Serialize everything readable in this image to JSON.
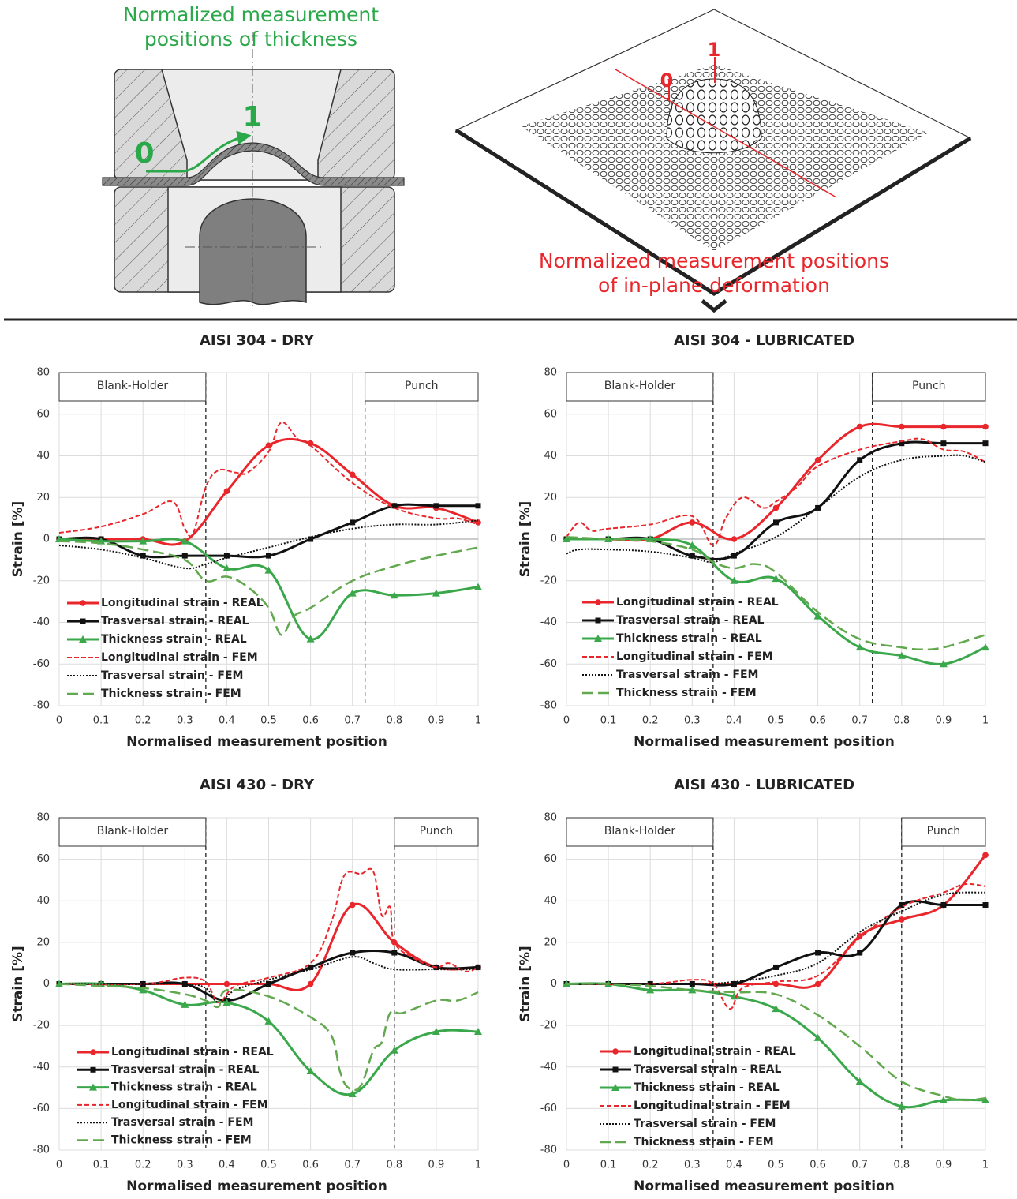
{
  "diagram": {
    "left": {
      "title_lines": [
        "Normalized measurement",
        "positions of thickness"
      ],
      "start_label": "0",
      "end_label": "1"
    },
    "right": {
      "title_lines": [
        "Normalized measurement positions",
        "of in-plane deformation"
      ],
      "start_label": "0",
      "end_label": "1"
    }
  },
  "chart_data": [
    {
      "type": "line",
      "title": "AISI 304 - DRY",
      "xlabel": "Normalised measurement position",
      "ylabel": "Strain [%]",
      "xlim": [
        0,
        1
      ],
      "xticks": [
        0,
        0.1,
        0.2,
        0.3,
        0.4,
        0.5,
        0.6,
        0.7,
        0.8,
        0.9,
        1
      ],
      "ylim": [
        -80,
        80
      ],
      "yticks": [
        -80,
        -60,
        -40,
        -20,
        0,
        20,
        40,
        60,
        80
      ],
      "grid": true,
      "legend": "lower left",
      "regions": [
        {
          "label": "Blank-Holder",
          "x": 0.35,
          "side": "left"
        },
        {
          "label": "Punch",
          "x": 0.73,
          "side": "right"
        }
      ],
      "series": [
        {
          "name": "Longitudinal strain - REAL",
          "color": "#e8262b",
          "style": "solid",
          "marker": "circle",
          "x": [
            0,
            0.1,
            0.2,
            0.3,
            0.4,
            0.5,
            0.6,
            0.7,
            0.8,
            0.9,
            1
          ],
          "values": [
            0,
            0,
            0,
            -1,
            23,
            45,
            46,
            31,
            16,
            15,
            8
          ]
        },
        {
          "name": "Trasversal strain - REAL",
          "color": "#111111",
          "style": "solid",
          "marker": "square",
          "x": [
            0,
            0.1,
            0.2,
            0.3,
            0.4,
            0.5,
            0.6,
            0.7,
            0.8,
            0.9,
            1
          ],
          "values": [
            0,
            0,
            -8,
            -8,
            -8,
            -8,
            0,
            8,
            16,
            16,
            16
          ]
        },
        {
          "name": "Thickness strain - REAL",
          "color": "#3aa84a",
          "style": "solid",
          "marker": "triangle",
          "x": [
            0,
            0.1,
            0.2,
            0.3,
            0.4,
            0.5,
            0.6,
            0.7,
            0.8,
            0.9,
            1
          ],
          "values": [
            0,
            -1,
            -1,
            -1,
            -14,
            -15,
            -48,
            -26,
            -27,
            -26,
            -23
          ]
        },
        {
          "name": "Longitudinal strain - FEM",
          "color": "#e8262b",
          "style": "dashed",
          "x": [
            0,
            0.1,
            0.2,
            0.27,
            0.3,
            0.32,
            0.35,
            0.38,
            0.42,
            0.45,
            0.5,
            0.53,
            0.57,
            0.6,
            0.7,
            0.8,
            0.9,
            0.95,
            1
          ],
          "values": [
            3,
            6,
            12,
            18,
            5,
            3,
            25,
            33,
            32,
            32,
            42,
            56,
            48,
            45,
            27,
            15,
            10,
            10,
            7
          ]
        },
        {
          "name": "Trasversal strain - FEM",
          "color": "#111111",
          "style": "dotted",
          "x": [
            0,
            0.1,
            0.2,
            0.3,
            0.35,
            0.4,
            0.5,
            0.6,
            0.7,
            0.8,
            0.9,
            1
          ],
          "values": [
            -3,
            -5,
            -9,
            -14,
            -12,
            -9,
            -4,
            1,
            5,
            7,
            7,
            9
          ]
        },
        {
          "name": "Thickness strain - FEM",
          "color": "#62a84e",
          "style": "long-dashed",
          "x": [
            0,
            0.1,
            0.2,
            0.3,
            0.35,
            0.4,
            0.45,
            0.5,
            0.53,
            0.56,
            0.6,
            0.7,
            0.8,
            0.9,
            1
          ],
          "values": [
            -1,
            -2,
            -5,
            -10,
            -20,
            -18,
            -23,
            -33,
            -46,
            -37,
            -33,
            -20,
            -13,
            -8,
            -4
          ]
        }
      ]
    },
    {
      "type": "line",
      "title": "AISI 304 - LUBRICATED",
      "xlabel": "Normalised measurement position",
      "ylabel": "Strain [%]",
      "xlim": [
        0,
        1
      ],
      "xticks": [
        0,
        0.1,
        0.2,
        0.3,
        0.4,
        0.5,
        0.6,
        0.7,
        0.8,
        0.9,
        1
      ],
      "ylim": [
        -80,
        80
      ],
      "yticks": [
        -80,
        -60,
        -40,
        -20,
        0,
        20,
        40,
        60,
        80
      ],
      "grid": true,
      "legend": "lower left",
      "regions": [
        {
          "label": "Blank-Holder",
          "x": 0.35,
          "side": "left"
        },
        {
          "label": "Punch",
          "x": 0.73,
          "side": "right"
        }
      ],
      "series": [
        {
          "name": "Longitudinal strain - REAL",
          "color": "#e8262b",
          "style": "solid",
          "marker": "circle",
          "x": [
            0,
            0.1,
            0.2,
            0.3,
            0.4,
            0.5,
            0.6,
            0.7,
            0.8,
            0.9,
            1
          ],
          "values": [
            0,
            0,
            0,
            8,
            0,
            15,
            38,
            54,
            54,
            54,
            54
          ]
        },
        {
          "name": "Trasversal strain - REAL",
          "color": "#111111",
          "style": "solid",
          "marker": "square",
          "x": [
            0,
            0.1,
            0.2,
            0.3,
            0.4,
            0.5,
            0.6,
            0.7,
            0.8,
            0.9,
            1
          ],
          "values": [
            0,
            0,
            0,
            -8,
            -8,
            8,
            15,
            38,
            46,
            46,
            46
          ]
        },
        {
          "name": "Thickness strain - REAL",
          "color": "#3aa84a",
          "style": "solid",
          "marker": "triangle",
          "x": [
            0,
            0.1,
            0.2,
            0.3,
            0.4,
            0.5,
            0.6,
            0.7,
            0.8,
            0.9,
            1
          ],
          "values": [
            0,
            0,
            0,
            -3,
            -20,
            -19,
            -37,
            -52,
            -56,
            -60,
            -52
          ]
        },
        {
          "name": "Longitudinal strain - FEM",
          "color": "#e8262b",
          "style": "dashed",
          "x": [
            0,
            0.03,
            0.06,
            0.1,
            0.2,
            0.3,
            0.35,
            0.38,
            0.42,
            0.47,
            0.5,
            0.55,
            0.6,
            0.7,
            0.8,
            0.85,
            0.9,
            0.95,
            1
          ],
          "values": [
            1,
            8,
            4,
            5,
            7,
            11,
            -3,
            10,
            20,
            15,
            18,
            25,
            35,
            43,
            47,
            48,
            43,
            42,
            37
          ]
        },
        {
          "name": "Trasversal strain - FEM",
          "color": "#111111",
          "style": "dotted",
          "x": [
            0,
            0.03,
            0.1,
            0.2,
            0.3,
            0.35,
            0.4,
            0.5,
            0.6,
            0.7,
            0.8,
            0.9,
            0.95,
            1
          ],
          "values": [
            -7,
            -5,
            -5,
            -6,
            -9,
            -11,
            -7,
            1,
            15,
            30,
            38,
            40,
            40,
            37
          ]
        },
        {
          "name": "Thickness strain - FEM",
          "color": "#62a84e",
          "style": "long-dashed",
          "x": [
            0,
            0.1,
            0.2,
            0.3,
            0.35,
            0.4,
            0.45,
            0.5,
            0.6,
            0.7,
            0.8,
            0.85,
            0.9,
            1
          ],
          "values": [
            1,
            0,
            -1,
            -5,
            -11,
            -14,
            -12,
            -16,
            -35,
            -48,
            -52,
            -53,
            -52,
            -46
          ]
        }
      ]
    },
    {
      "type": "line",
      "title": "AISI 430 - DRY",
      "xlabel": "Normalised measurement position",
      "ylabel": "Strain [%]",
      "xlim": [
        0,
        1
      ],
      "xticks": [
        0,
        0.1,
        0.2,
        0.3,
        0.4,
        0.5,
        0.6,
        0.7,
        0.8,
        0.9,
        1
      ],
      "ylim": [
        -80,
        80
      ],
      "yticks": [
        -80,
        -60,
        -40,
        -20,
        0,
        20,
        40,
        60,
        80
      ],
      "grid": true,
      "legend": "lower left",
      "regions": [
        {
          "label": "Blank-Holder",
          "x": 0.35,
          "side": "left"
        },
        {
          "label": "Punch",
          "x": 0.8,
          "side": "right"
        }
      ],
      "series": [
        {
          "name": "Longitudinal strain - REAL",
          "color": "#e8262b",
          "style": "solid",
          "marker": "circle",
          "x": [
            0,
            0.1,
            0.2,
            0.3,
            0.4,
            0.5,
            0.6,
            0.7,
            0.8,
            0.9,
            1
          ],
          "values": [
            0,
            0,
            0,
            0,
            0,
            0,
            0,
            38,
            20,
            8,
            8
          ]
        },
        {
          "name": "Trasversal strain - REAL",
          "color": "#111111",
          "style": "solid",
          "marker": "square",
          "x": [
            0,
            0.1,
            0.2,
            0.3,
            0.4,
            0.5,
            0.6,
            0.7,
            0.8,
            0.9,
            1
          ],
          "values": [
            0,
            0,
            0,
            0,
            -8,
            0,
            8,
            15,
            15,
            8,
            8
          ]
        },
        {
          "name": "Thickness strain - REAL",
          "color": "#3aa84a",
          "style": "solid",
          "marker": "triangle",
          "x": [
            0,
            0.1,
            0.2,
            0.3,
            0.4,
            0.5,
            0.6,
            0.7,
            0.8,
            0.9,
            1
          ],
          "values": [
            0,
            0,
            -3,
            -10,
            -9,
            -18,
            -42,
            -53,
            -32,
            -23,
            -23
          ]
        },
        {
          "name": "Longitudinal strain - FEM",
          "color": "#e8262b",
          "style": "dashed",
          "x": [
            0,
            0.2,
            0.3,
            0.35,
            0.38,
            0.42,
            0.5,
            0.6,
            0.65,
            0.68,
            0.72,
            0.75,
            0.77,
            0.79,
            0.8,
            0.85,
            0.9,
            0.93,
            0.97,
            1
          ],
          "values": [
            0,
            0,
            3,
            1,
            -9,
            -1,
            3,
            10,
            30,
            52,
            53,
            54,
            33,
            37,
            20,
            12,
            8,
            10,
            6,
            8
          ]
        },
        {
          "name": "Trasversal strain - FEM",
          "color": "#111111",
          "style": "dotted",
          "x": [
            0,
            0.2,
            0.3,
            0.35,
            0.38,
            0.42,
            0.5,
            0.6,
            0.7,
            0.75,
            0.8,
            0.9,
            1
          ],
          "values": [
            0,
            0,
            0,
            -2,
            -9,
            -3,
            2,
            7,
            13,
            10,
            7,
            7,
            7
          ]
        },
        {
          "name": "Thickness strain - FEM",
          "color": "#62a84e",
          "style": "long-dashed",
          "x": [
            0,
            0.1,
            0.2,
            0.3,
            0.35,
            0.38,
            0.4,
            0.5,
            0.6,
            0.65,
            0.67,
            0.69,
            0.72,
            0.75,
            0.77,
            0.79,
            0.82,
            0.9,
            0.95,
            1
          ],
          "values": [
            0,
            -1,
            -2,
            -5,
            -8,
            -11,
            -3,
            -6,
            -16,
            -25,
            -42,
            -50,
            -49,
            -32,
            -28,
            -14,
            -14,
            -8,
            -8,
            -4
          ]
        }
      ]
    },
    {
      "type": "line",
      "title": "AISI 430 - LUBRICATED",
      "xlabel": "Normalised measurement position",
      "ylabel": "Strain [%]",
      "xlim": [
        0,
        1
      ],
      "xticks": [
        0,
        0.1,
        0.2,
        0.3,
        0.4,
        0.5,
        0.6,
        0.7,
        0.8,
        0.9,
        1
      ],
      "ylim": [
        -80,
        80
      ],
      "yticks": [
        -80,
        -60,
        -40,
        -20,
        0,
        20,
        40,
        60,
        80
      ],
      "grid": true,
      "legend": "lower left",
      "regions": [
        {
          "label": "Blank-Holder",
          "x": 0.35,
          "side": "left"
        },
        {
          "label": "Punch",
          "x": 0.8,
          "side": "right"
        }
      ],
      "series": [
        {
          "name": "Longitudinal strain - REAL",
          "color": "#e8262b",
          "style": "solid",
          "marker": "circle",
          "x": [
            0,
            0.1,
            0.2,
            0.3,
            0.4,
            0.5,
            0.6,
            0.7,
            0.8,
            0.9,
            1
          ],
          "values": [
            0,
            0,
            0,
            0,
            0,
            0,
            0,
            23,
            31,
            38,
            62
          ]
        },
        {
          "name": "Trasversal strain - REAL",
          "color": "#111111",
          "style": "solid",
          "marker": "square",
          "x": [
            0,
            0.1,
            0.2,
            0.3,
            0.4,
            0.5,
            0.6,
            0.7,
            0.8,
            0.9,
            1
          ],
          "values": [
            0,
            0,
            0,
            0,
            0,
            8,
            15,
            15,
            38,
            38,
            38
          ]
        },
        {
          "name": "Thickness strain - REAL",
          "color": "#3aa84a",
          "style": "solid",
          "marker": "triangle",
          "x": [
            0,
            0.1,
            0.2,
            0.3,
            0.4,
            0.5,
            0.6,
            0.7,
            0.8,
            0.9,
            1
          ],
          "values": [
            0,
            0,
            -3,
            -3,
            -6,
            -12,
            -26,
            -47,
            -59,
            -56,
            -56
          ]
        },
        {
          "name": "Longitudinal strain - FEM",
          "color": "#e8262b",
          "style": "dashed",
          "x": [
            0,
            0.2,
            0.3,
            0.35,
            0.39,
            0.42,
            0.5,
            0.6,
            0.7,
            0.8,
            0.9,
            0.95,
            1
          ],
          "values": [
            0,
            0,
            2,
            0,
            -12,
            -2,
            1,
            4,
            22,
            37,
            44,
            48,
            47
          ]
        },
        {
          "name": "Trasversal strain - FEM",
          "color": "#111111",
          "style": "dotted",
          "x": [
            0,
            0.3,
            0.4,
            0.5,
            0.6,
            0.7,
            0.8,
            0.9,
            1
          ],
          "values": [
            0,
            0,
            1,
            4,
            10,
            25,
            35,
            43,
            44
          ]
        },
        {
          "name": "Thickness strain - FEM",
          "color": "#62a84e",
          "style": "long-dashed",
          "x": [
            0,
            0.1,
            0.2,
            0.3,
            0.4,
            0.5,
            0.6,
            0.7,
            0.8,
            0.9,
            0.95,
            1
          ],
          "values": [
            0,
            0,
            -1,
            -3,
            -4,
            -5,
            -15,
            -30,
            -47,
            -54,
            -56,
            -55
          ]
        }
      ]
    }
  ]
}
